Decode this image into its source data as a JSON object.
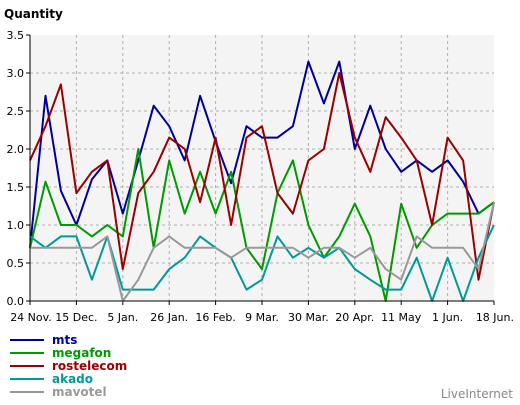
{
  "chart_data": {
    "type": "line",
    "title": "",
    "ylabel": "Quantity",
    "xlabel": "",
    "ylim": [
      0,
      3.5
    ],
    "yticks": [
      "0.0",
      "0.5",
      "1.0",
      "1.5",
      "2.0",
      "2.5",
      "3.0",
      "3.5"
    ],
    "x_tick_labels": [
      "24 Nov.",
      "15 Dec.",
      "5 Jan.",
      "26 Jan.",
      "16 Feb.",
      "9 Mar.",
      "30 Mar.",
      "20 Apr.",
      "11 May",
      "1 Jun.",
      "18 Jun."
    ],
    "grid": true,
    "legend_position": "bottom-left",
    "credit": "LiveInternet",
    "series": [
      {
        "name": "mts",
        "color": "#000099",
        "values": [
          0.7,
          2.7,
          1.45,
          1.0,
          1.6,
          1.85,
          1.15,
          1.85,
          2.57,
          2.3,
          1.85,
          2.7,
          2.1,
          1.55,
          2.3,
          2.15,
          2.15,
          2.3,
          3.15,
          2.6,
          3.15,
          2.0,
          2.57,
          2.0,
          1.7,
          1.85,
          1.7,
          1.85,
          1.57,
          1.15,
          1.3
        ]
      },
      {
        "name": "megafon",
        "color": "#009900",
        "values": [
          0.7,
          1.57,
          1.0,
          1.0,
          0.85,
          1.0,
          0.85,
          2.0,
          0.7,
          1.85,
          1.15,
          1.7,
          1.15,
          1.7,
          0.7,
          0.42,
          1.42,
          1.85,
          1.0,
          0.57,
          0.85,
          1.28,
          0.85,
          0.0,
          1.28,
          0.7,
          1.0,
          1.15,
          1.15,
          1.15,
          1.3
        ]
      },
      {
        "name": "rostelecom",
        "color": "#990000",
        "values": [
          1.85,
          2.3,
          2.85,
          1.42,
          1.7,
          1.85,
          0.42,
          1.42,
          1.7,
          2.15,
          2.0,
          1.3,
          2.15,
          1.0,
          2.15,
          2.3,
          1.42,
          1.15,
          1.85,
          2.0,
          3.0,
          2.15,
          1.7,
          2.42,
          2.15,
          1.85,
          1.0,
          2.15,
          1.85,
          0.28,
          1.3
        ]
      },
      {
        "name": "akado",
        "color": "#009999",
        "values": [
          0.85,
          0.7,
          0.85,
          0.85,
          0.28,
          0.85,
          0.15,
          0.15,
          0.15,
          0.42,
          0.57,
          0.85,
          0.7,
          0.57,
          0.15,
          0.28,
          0.85,
          0.57,
          0.7,
          0.57,
          0.7,
          0.42,
          0.28,
          0.15,
          0.15,
          0.57,
          0.0,
          0.57,
          0.0,
          0.57,
          1.0
        ]
      },
      {
        "name": "mavotel",
        "color": "#999999",
        "values": [
          0.7,
          0.7,
          0.7,
          0.7,
          0.7,
          0.85,
          0.0,
          0.28,
          0.7,
          0.85,
          0.7,
          0.7,
          0.7,
          0.57,
          0.7,
          0.7,
          0.7,
          0.7,
          0.57,
          0.7,
          0.7,
          0.57,
          0.7,
          0.42,
          0.28,
          0.85,
          0.7,
          0.7,
          0.7,
          0.42,
          1.3
        ]
      }
    ]
  }
}
